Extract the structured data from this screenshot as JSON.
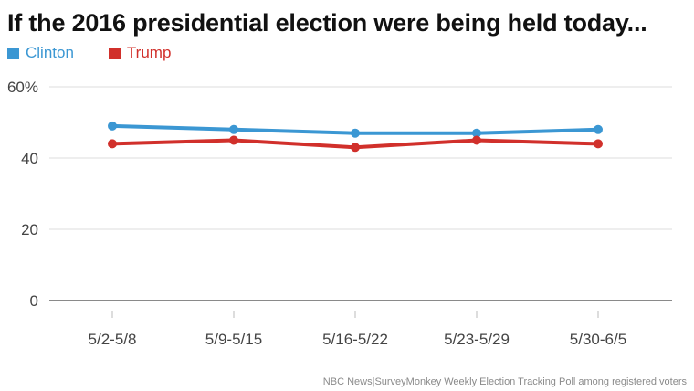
{
  "title": "If the 2016 presidential election were being held today...",
  "source": "NBC News|SurveyMonkey Weekly Election Tracking Poll among registered voters",
  "colors": {
    "clinton": "#3b97d3",
    "trump": "#d1302b",
    "grid": "#dddddd",
    "axis": "#444444"
  },
  "chart_data": {
    "type": "line",
    "title": "If the 2016 presidential election were being held today...",
    "categories": [
      "5/2-5/8",
      "5/9-5/15",
      "5/16-5/22",
      "5/23-5/29",
      "5/30-6/5"
    ],
    "series": [
      {
        "name": "Clinton",
        "color": "#3b97d3",
        "values": [
          49,
          48,
          47,
          47,
          48
        ]
      },
      {
        "name": "Trump",
        "color": "#d1302b",
        "values": [
          44,
          45,
          43,
          45,
          44
        ]
      }
    ],
    "ylim": [
      0,
      60
    ],
    "yticks": [
      0,
      20,
      40,
      60
    ],
    "ytick_labels": [
      "0",
      "20",
      "40",
      "60%"
    ],
    "xlabel": "",
    "ylabel": "",
    "grid": true,
    "legend": "top-left"
  }
}
